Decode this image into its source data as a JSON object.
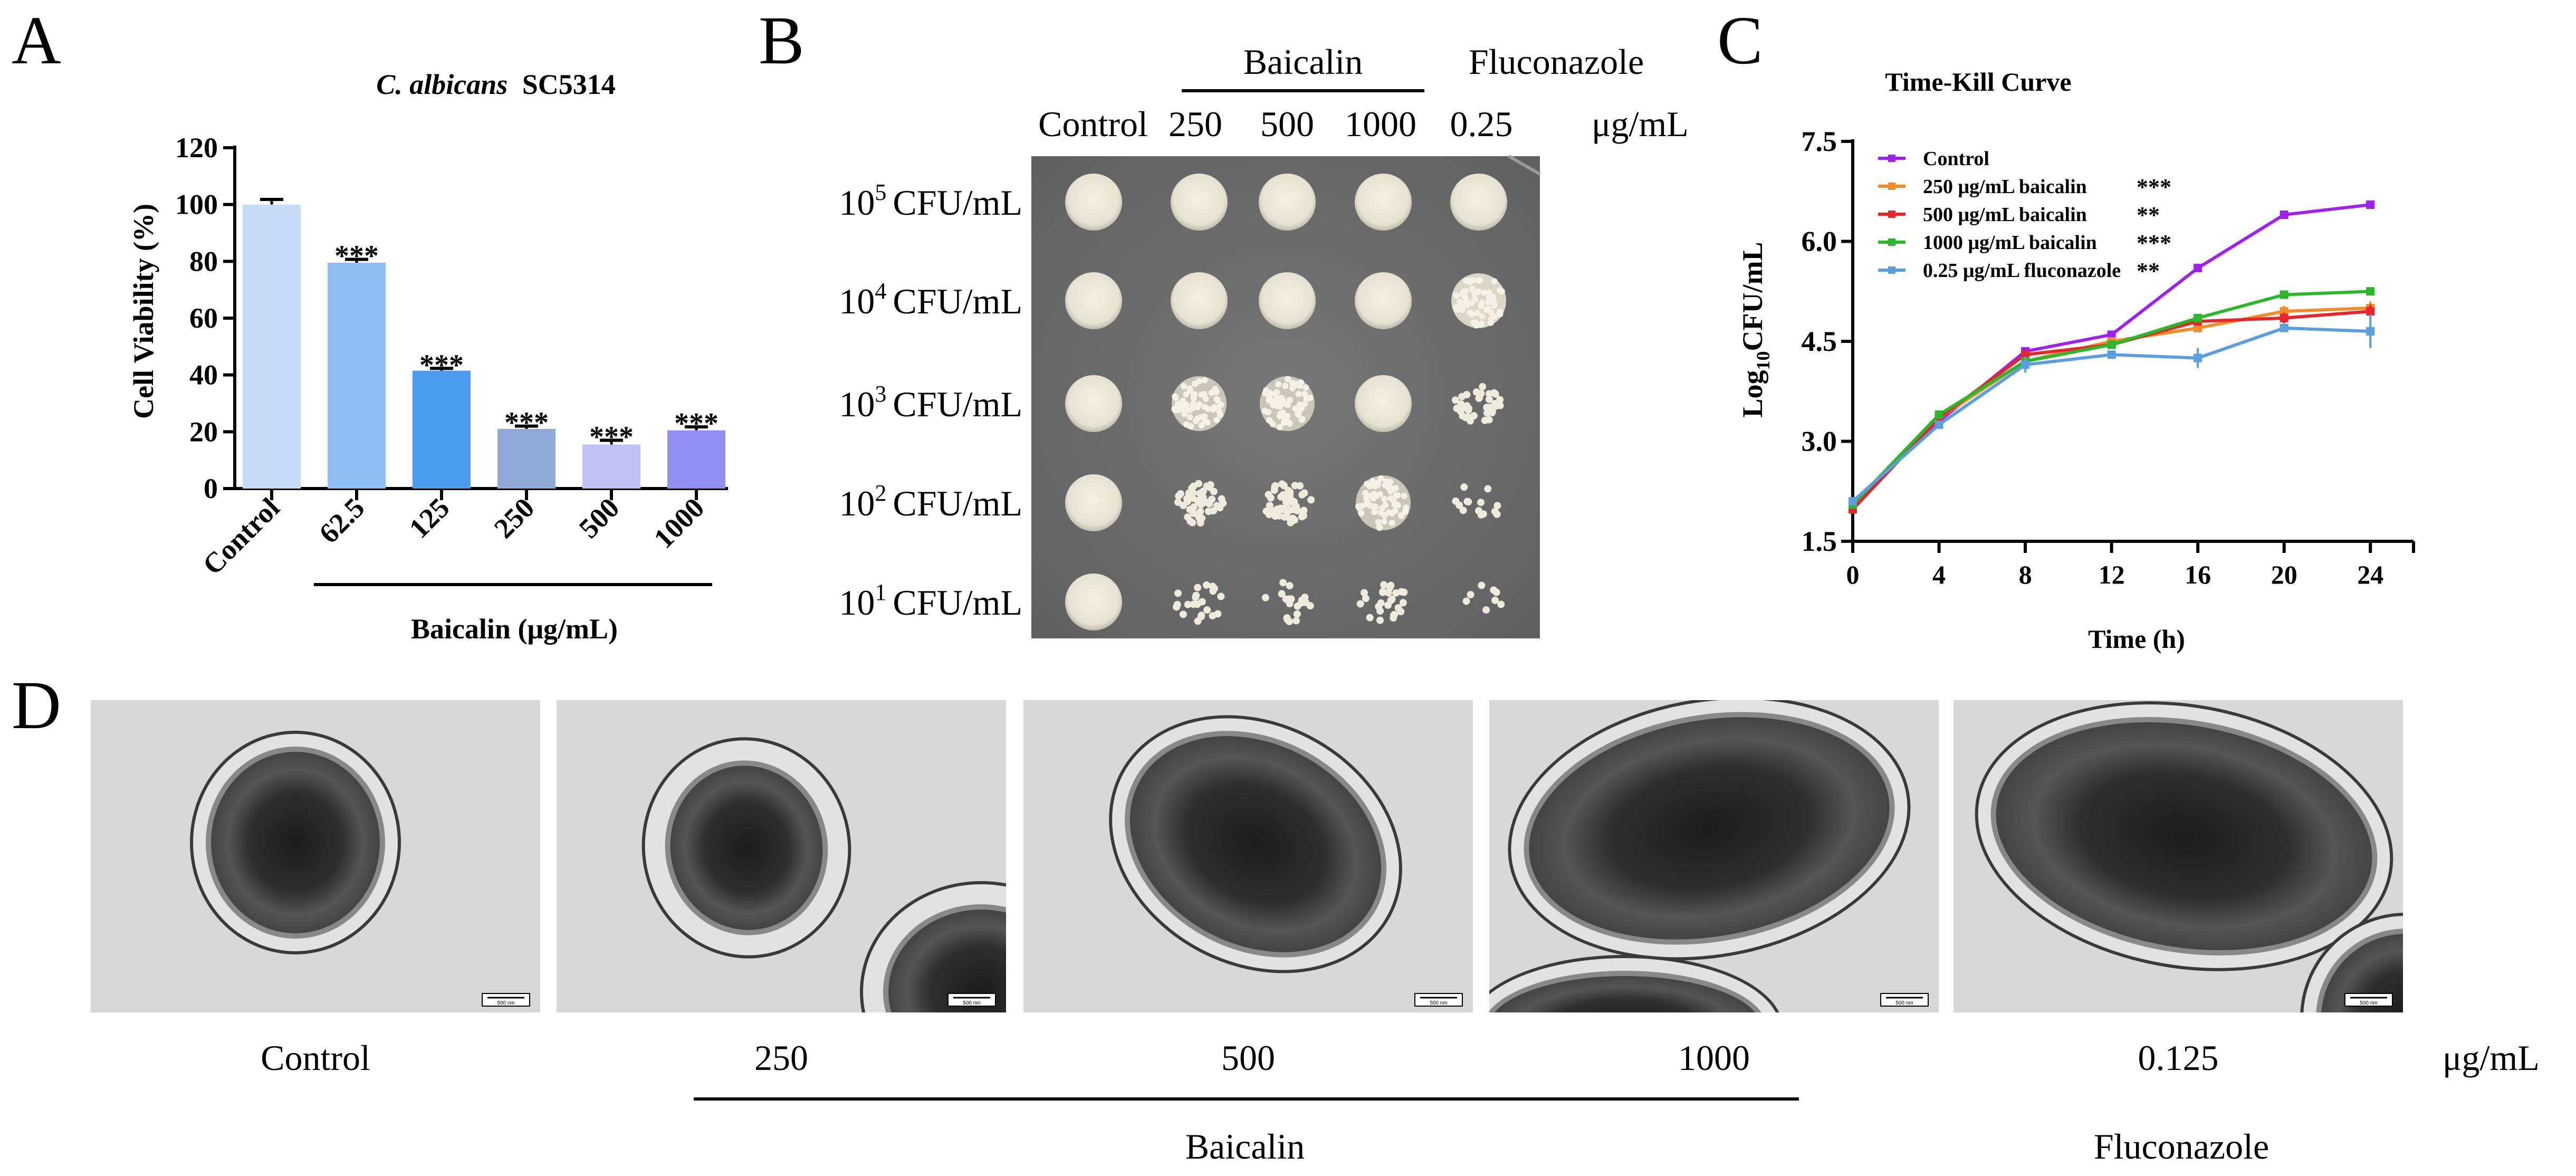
{
  "panels": {
    "a": "A",
    "b": "B",
    "c": "C",
    "d": "D"
  },
  "colors": {
    "bars": [
      "#c6dcf7",
      "#8fbef5",
      "#4c9df2",
      "#8faad6",
      "#c1c1f5",
      "#9090f5"
    ],
    "plate": "#6e6e6e",
    "series": [
      "#a020f0",
      "#f28c28",
      "#e6262a",
      "#2ab82a",
      "#5b9ee0"
    ]
  },
  "chart_data": [
    {
      "id": "A",
      "type": "bar",
      "title": "C. albicans",
      "title_suffix": "SC5314",
      "ylabel": "Cell Viability (%)",
      "group_label": "Baicalin (μg/mL)",
      "categories": [
        "Control",
        "62.5",
        "125",
        "250",
        "500",
        "1000"
      ],
      "values": [
        100,
        79.5,
        41.5,
        21,
        15.5,
        20.5
      ],
      "errors": [
        1.8,
        1.2,
        0.8,
        1.0,
        1.5,
        1.2
      ],
      "significance": [
        "",
        "***",
        "***",
        "***",
        "***",
        "***"
      ],
      "ylim": [
        0,
        120
      ],
      "yticks": [
        "0",
        "20",
        "40",
        "60",
        "80",
        "100",
        "120"
      ],
      "grid": false
    },
    {
      "id": "C",
      "type": "line",
      "title": "Time-Kill Curve",
      "xlabel": "Time (h)",
      "ylabel_main": "Log",
      "ylabel_sub": "10",
      "ylabel_tail": "CFU/mL",
      "x": [
        0,
        4,
        8,
        12,
        16,
        20,
        24
      ],
      "xticks": [
        "0",
        "4",
        "8",
        "12",
        "16",
        "20",
        "24"
      ],
      "xlim": [
        0,
        26
      ],
      "yticks": [
        "1.5",
        "3.0",
        "4.5",
        "6.0",
        "7.5"
      ],
      "ylim": [
        1.5,
        7.5
      ],
      "legend_position": "top-left",
      "grid": false,
      "series": [
        {
          "name": "Control",
          "sig": "",
          "values": [
            2.05,
            3.3,
            4.35,
            4.6,
            5.6,
            6.4,
            6.55
          ],
          "errors": [
            0.05,
            0.05,
            0.05,
            0.05,
            0.05,
            0.05,
            0.03
          ]
        },
        {
          "name": "250 μg/mL baicalin",
          "sig": "***",
          "values": [
            2.0,
            3.35,
            4.2,
            4.5,
            4.7,
            4.95,
            5.0
          ],
          "errors": [
            0.05,
            0.05,
            0.05,
            0.05,
            0.05,
            0.08,
            0.1
          ]
        },
        {
          "name": "500 μg/mL baicalin",
          "sig": "**",
          "values": [
            1.98,
            3.35,
            4.3,
            4.45,
            4.8,
            4.85,
            4.95
          ],
          "errors": [
            0.05,
            0.05,
            0.05,
            0.05,
            0.05,
            0.08,
            0.1
          ]
        },
        {
          "name": "1000 μg/mL baicalin",
          "sig": "***",
          "values": [
            2.05,
            3.4,
            4.2,
            4.45,
            4.85,
            5.2,
            5.25
          ],
          "errors": [
            0.05,
            0.05,
            0.05,
            0.05,
            0.05,
            0.05,
            0.05
          ]
        },
        {
          "name": "0.25 μg/mL fluconazole",
          "sig": "**",
          "values": [
            2.1,
            3.25,
            4.15,
            4.3,
            4.25,
            4.7,
            4.65
          ],
          "errors": [
            0.05,
            0.05,
            0.12,
            0.05,
            0.15,
            0.05,
            0.25
          ]
        }
      ]
    }
  ],
  "panel_b": {
    "group_label": "Baicalin",
    "fluconazole_label": "Fluconazole",
    "columns": [
      "Control",
      "250",
      "500",
      "1000",
      "0.25"
    ],
    "unit": "μg/mL",
    "rows": [
      {
        "base": "10",
        "exp": "5",
        "unit": "CFU/mL"
      },
      {
        "base": "10",
        "exp": "4",
        "unit": "CFU/mL"
      },
      {
        "base": "10",
        "exp": "3",
        "unit": "CFU/mL"
      },
      {
        "base": "10",
        "exp": "2",
        "unit": "CFU/mL"
      },
      {
        "base": "10",
        "exp": "1",
        "unit": "CFU/mL"
      }
    ]
  },
  "panel_d": {
    "labels": [
      "Control",
      "250",
      "500",
      "1000",
      "0.125"
    ],
    "unit": "μg/mL",
    "baicalin_label": "Baicalin",
    "fluconazole_label": "Fluconazole",
    "scale_bar": "500 nm"
  }
}
